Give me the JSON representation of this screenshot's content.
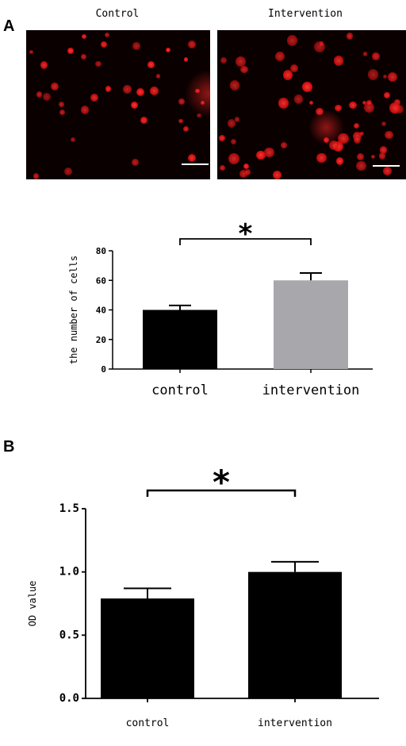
{
  "panel_a": {
    "letter": "A",
    "images": [
      {
        "label": "Control"
      },
      {
        "label": "Intervention"
      }
    ]
  },
  "panel_b": {
    "letter": "B"
  },
  "colors": {
    "fluorescence": "#e01515",
    "control_bar_a": "#000000",
    "intervention_bar_a": "#a8a8ac",
    "bars_b": "#000000"
  },
  "chart_data": [
    {
      "type": "bar",
      "categories": [
        "control",
        "intervention"
      ],
      "values": [
        40,
        60
      ],
      "errors": [
        3,
        5
      ],
      "ylabel": "the number of cells",
      "ylim": [
        0,
        80
      ],
      "yticks": [
        "0",
        "20",
        "40",
        "60",
        "80"
      ],
      "significance": "*"
    },
    {
      "type": "bar",
      "categories": [
        "control",
        "intervention"
      ],
      "values": [
        0.79,
        1.0
      ],
      "errors": [
        0.08,
        0.08
      ],
      "ylabel": "OD value",
      "ylim": [
        0,
        1.5
      ],
      "yticks": [
        "0.0",
        "0.5",
        "1.0",
        "1.5"
      ],
      "significance": "*"
    }
  ]
}
